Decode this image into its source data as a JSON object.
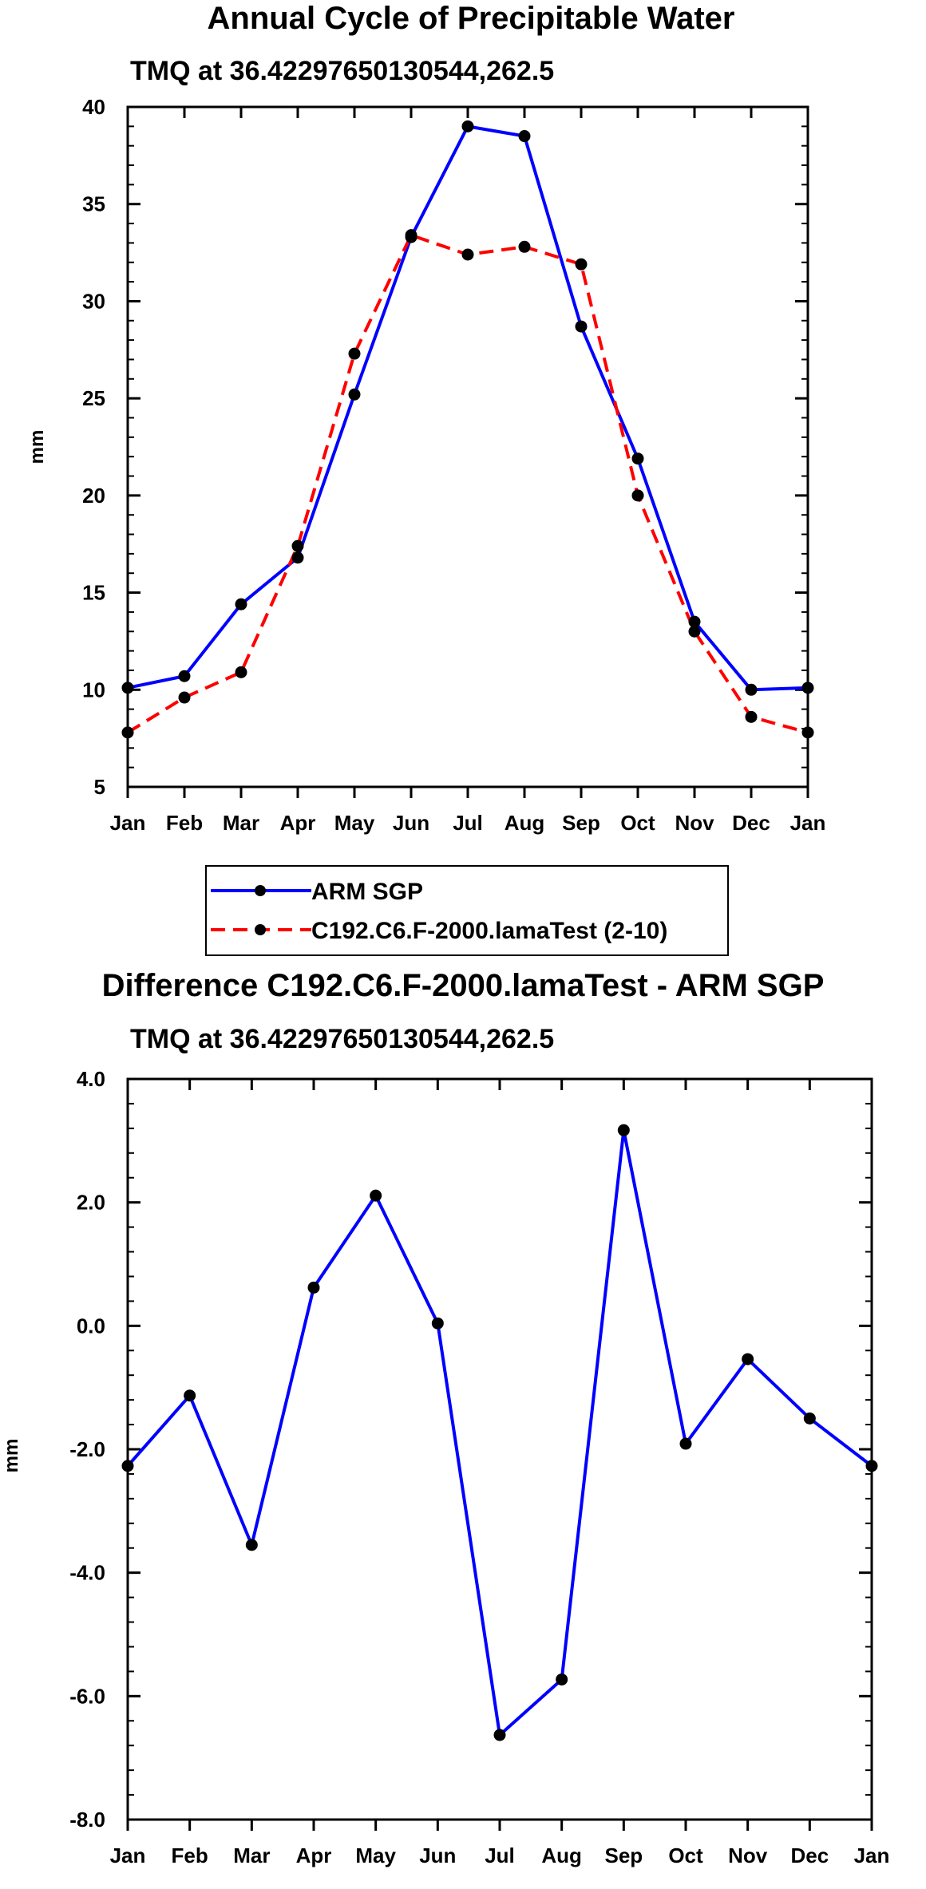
{
  "chart_data": [
    {
      "type": "line",
      "title": "Annual Cycle of Precipitable Water",
      "subtitle": "TMQ at 36.42297650130544,262.5",
      "xlabel": "",
      "ylabel": "mm",
      "categories": [
        "Jan",
        "Feb",
        "Mar",
        "Apr",
        "May",
        "Jun",
        "Jul",
        "Aug",
        "Sep",
        "Oct",
        "Nov",
        "Dec",
        "Jan"
      ],
      "ylim": [
        5,
        40
      ],
      "yticks": [
        "5",
        "10",
        "15",
        "20",
        "25",
        "30",
        "35",
        "40"
      ],
      "yticks_values": [
        5,
        10,
        15,
        20,
        25,
        30,
        35,
        40
      ],
      "series": [
        {
          "name": "ARM SGP",
          "color": "#0000ff",
          "style": "solid",
          "values": [
            10.1,
            10.7,
            14.4,
            16.8,
            25.2,
            33.3,
            39.0,
            38.5,
            28.7,
            21.9,
            13.5,
            10.0,
            10.1
          ]
        },
        {
          "name": "C192.C6.F-2000.lamaTest (2-10)",
          "color": "#ff0000",
          "style": "dashed",
          "values": [
            7.8,
            9.6,
            10.9,
            17.4,
            27.3,
            33.4,
            32.4,
            32.8,
            31.9,
            20.0,
            13.0,
            8.6,
            7.8
          ]
        }
      ],
      "legend": {
        "position": "bottom-center",
        "entries": [
          "ARM SGP",
          "C192.C6.F-2000.lamaTest (2-10)"
        ]
      }
    },
    {
      "type": "line",
      "title": "Difference C192.C6.F-2000.lamaTest - ARM SGP",
      "subtitle": "TMQ at 36.42297650130544,262.5",
      "xlabel": "",
      "ylabel": "mm",
      "categories": [
        "Jan",
        "Feb",
        "Mar",
        "Apr",
        "May",
        "Jun",
        "Jul",
        "Aug",
        "Sep",
        "Oct",
        "Nov",
        "Dec",
        "Jan"
      ],
      "ylim": [
        -8,
        4
      ],
      "yticks": [
        "-8.0",
        "-6.0",
        "-4.0",
        "-2.0",
        "0.0",
        "2.0",
        "4.0"
      ],
      "yticks_values": [
        -8,
        -6,
        -4,
        -2,
        0,
        2,
        4
      ],
      "series": [
        {
          "name": "Difference",
          "color": "#0000ff",
          "style": "solid",
          "values": [
            -2.27,
            -1.13,
            -3.55,
            0.62,
            2.11,
            0.04,
            -6.63,
            -5.73,
            3.17,
            -1.91,
            -0.54,
            -1.5,
            -2.27
          ]
        }
      ]
    }
  ]
}
